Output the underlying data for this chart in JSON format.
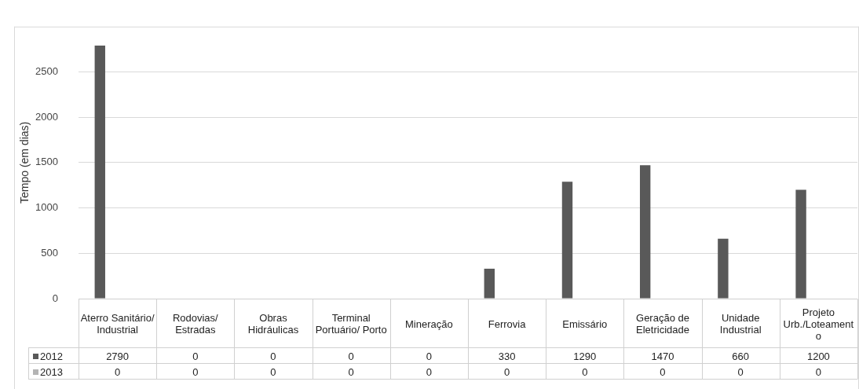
{
  "chart_data": {
    "type": "bar",
    "ylabel": "Tempo (em dias)",
    "categories": [
      "Aterro Sanitário/ Industrial",
      "Rodovias/ Estradas",
      "Obras Hidráulicas",
      "Terminal Portuário/ Porto",
      "Mineração",
      "Ferrovia",
      "Emissário",
      "Geração de Eletricidade",
      "Unidade Industrial",
      "Projeto Urb./Loteamento"
    ],
    "series": [
      {
        "name": "2012",
        "color": "#595959",
        "values": [
          2790,
          0,
          0,
          0,
          0,
          330,
          1290,
          1470,
          660,
          1200
        ]
      },
      {
        "name": "2013",
        "color": "#b4b4b4",
        "values": [
          0,
          0,
          0,
          0,
          0,
          0,
          0,
          0,
          0,
          0
        ]
      }
    ],
    "ylim": [
      0,
      3000
    ],
    "yticks": [
      0,
      500,
      1000,
      1500,
      2000,
      2500
    ],
    "grid": "y",
    "legend": "bottom",
    "data_labels": true
  }
}
